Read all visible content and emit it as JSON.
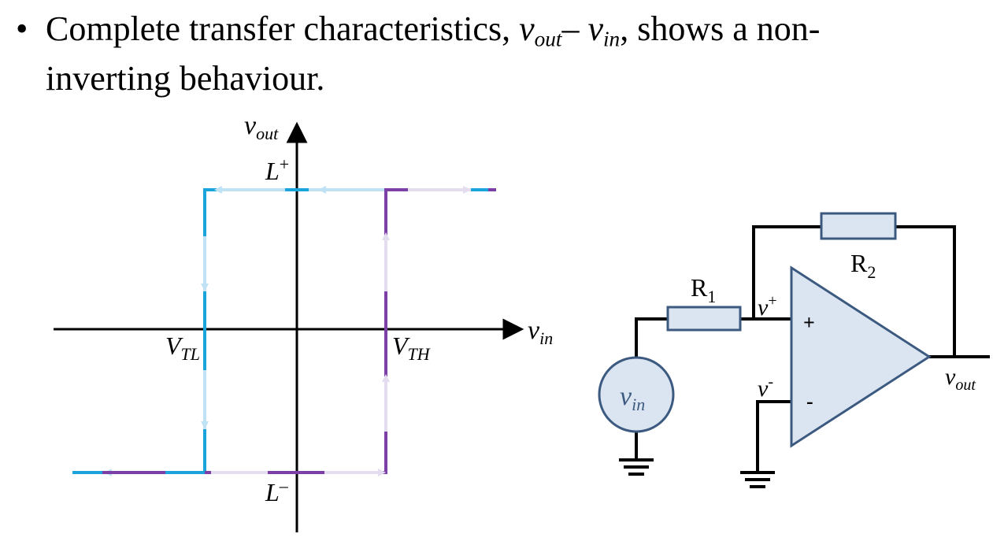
{
  "bullet": {
    "symbol": "•",
    "line1_pre": "Complete transfer characteristics, ",
    "v_sym": "v",
    "out_sub": "out",
    "minus": "– ",
    "in_sub": "in",
    "line1_post": ", shows a non-",
    "line2": "inverting behaviour."
  },
  "plot": {
    "y_axis": {
      "symbol": "v",
      "sub": "out"
    },
    "x_axis": {
      "symbol": "v",
      "sub": "in"
    },
    "l_plus": {
      "symbol": "L",
      "sup": "+"
    },
    "l_minus": {
      "symbol": "L",
      "sup": "–"
    },
    "vtl": {
      "symbol": "V",
      "sub": "TL"
    },
    "vth": {
      "symbol": "V",
      "sub": "TH"
    },
    "colors": {
      "axis": "#000000",
      "decreasing_path": "#1ba3dc",
      "decreasing_arrow": "#bfe3f5",
      "increasing_path": "#7b3fa6",
      "increasing_arrow": "#e4dcef"
    }
  },
  "circuit": {
    "r1": {
      "symbol": "R",
      "sub": "1"
    },
    "r2": {
      "symbol": "R",
      "sub": "2"
    },
    "v_plus": {
      "symbol": "v",
      "sup": "+"
    },
    "v_minus": {
      "symbol": "v",
      "sup": "-"
    },
    "plus_terminal": "+",
    "minus_terminal": "-",
    "source": {
      "symbol": "v",
      "sub": "in"
    },
    "output": {
      "symbol": "v",
      "sub": "out"
    },
    "colors": {
      "wire": "#000000",
      "component_fill": "#dbe5f1",
      "component_stroke": "#3c5a80"
    }
  }
}
